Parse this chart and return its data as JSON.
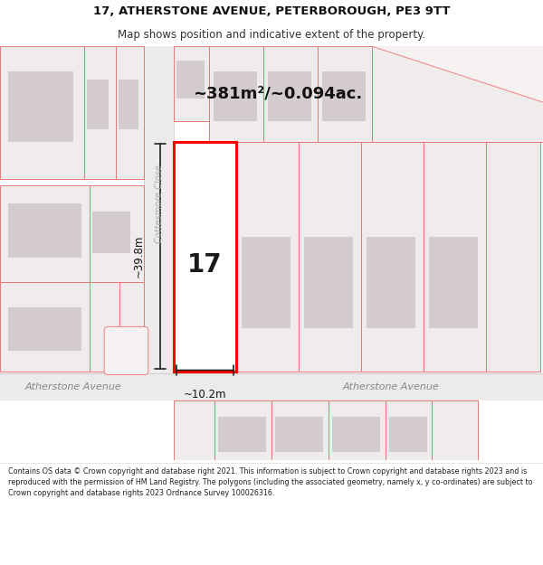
{
  "title_line1": "17, ATHERSTONE AVENUE, PETERBOROUGH, PE3 9TT",
  "title_line2": "Map shows position and indicative extent of the property.",
  "area_text": "~381m²/~0.094ac.",
  "number_label": "17",
  "dim_width": "~10.2m",
  "dim_height": "~39.8m",
  "street_left": "Atherstone Avenue",
  "street_right": "Atherstone Avenue",
  "road_label": "Cottesmore Close",
  "footer_text": "Contains OS data © Crown copyright and database right 2021. This information is subject to Crown copyright and database rights 2023 and is reproduced with the permission of HM Land Registry. The polygons (including the associated geometry, namely x, y co-ordinates) are subject to Crown copyright and database rights 2023 Ordnance Survey 100026316.",
  "bg_color": "#ffffff",
  "map_bg": "#f7f2f2",
  "road_bg": "#edeaea",
  "plot_border": "#ff0000",
  "building_fill": "#d8d0d0",
  "boundary_color": "#f08080",
  "dark_line": "#222222"
}
